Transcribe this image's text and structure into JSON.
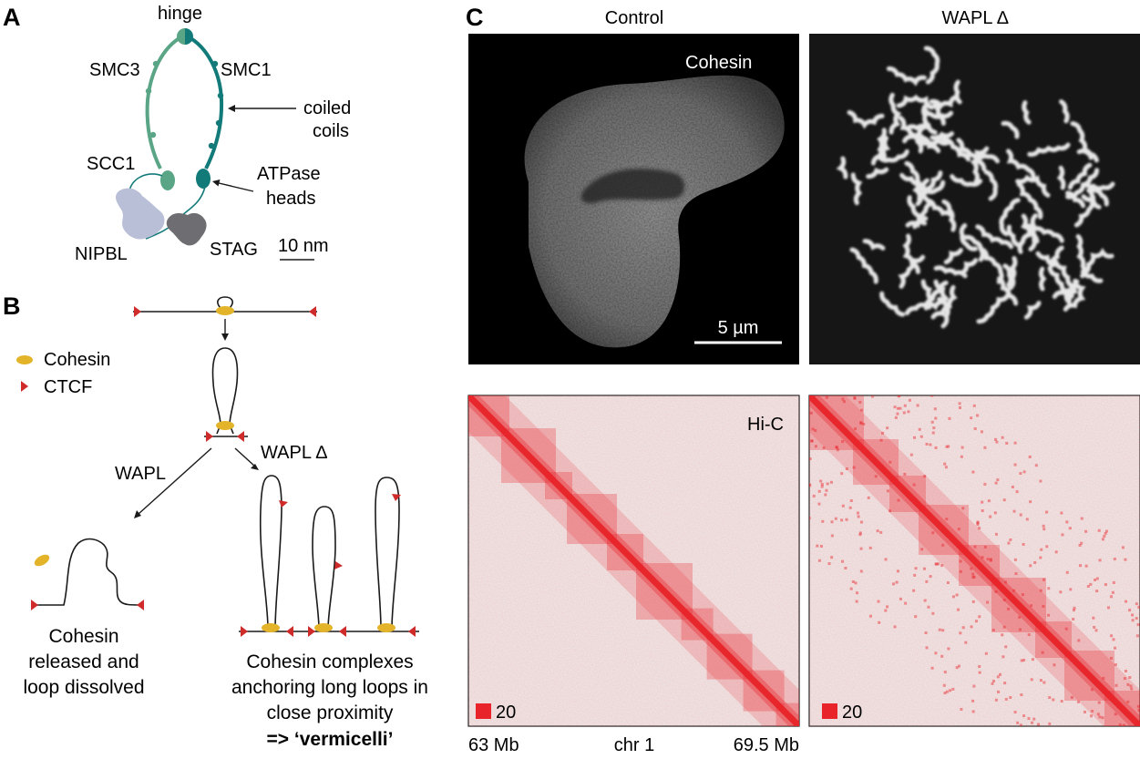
{
  "panel_a": {
    "letter": "A",
    "labels": {
      "hinge": "hinge",
      "smc3": "SMC3",
      "smc1": "SMC1",
      "coiled_line1": "coiled",
      "coiled_line2": "coils",
      "scc1": "SCC1",
      "atpase_line1": "ATPase",
      "atpase_line2": "heads",
      "nipbl": "NIPBL",
      "stag": "STAG",
      "scale": "10 nm"
    }
  },
  "panel_b": {
    "letter": "B",
    "legend": {
      "cohesin": "Cohesin",
      "ctcf": "CTCF"
    },
    "wapl": "WAPL",
    "wapl_delta": "WAPL ∆",
    "left_caption": [
      "Cohesin",
      "released and",
      "loop dissolved"
    ],
    "right_caption": [
      "Cohesin complexes",
      "anchoring long loops in",
      "close proximity"
    ],
    "right_caption_bold": "=> ‘vermicelli’"
  },
  "panel_c": {
    "letter": "C",
    "col_titles": {
      "control": "Control",
      "wapl_delta": "WAPL ∆"
    },
    "image_label": "Cohesin",
    "scale_bar": "5 µm",
    "hic_label": "Hi-C",
    "color_scale_value": "20",
    "axis": {
      "start": "63 Mb",
      "chrom": "chr 1",
      "end": "69.5 Mb"
    }
  },
  "colors": {
    "cohesin": "#e3b32a",
    "ctcf": "#d02b2b",
    "smc3": "#5aa586",
    "smc1": "#137a7a",
    "nipbl": "#b9bfd6",
    "stag": "#6e6e72",
    "hic_red": "#e8242a",
    "hic_bg": "#ededed"
  }
}
